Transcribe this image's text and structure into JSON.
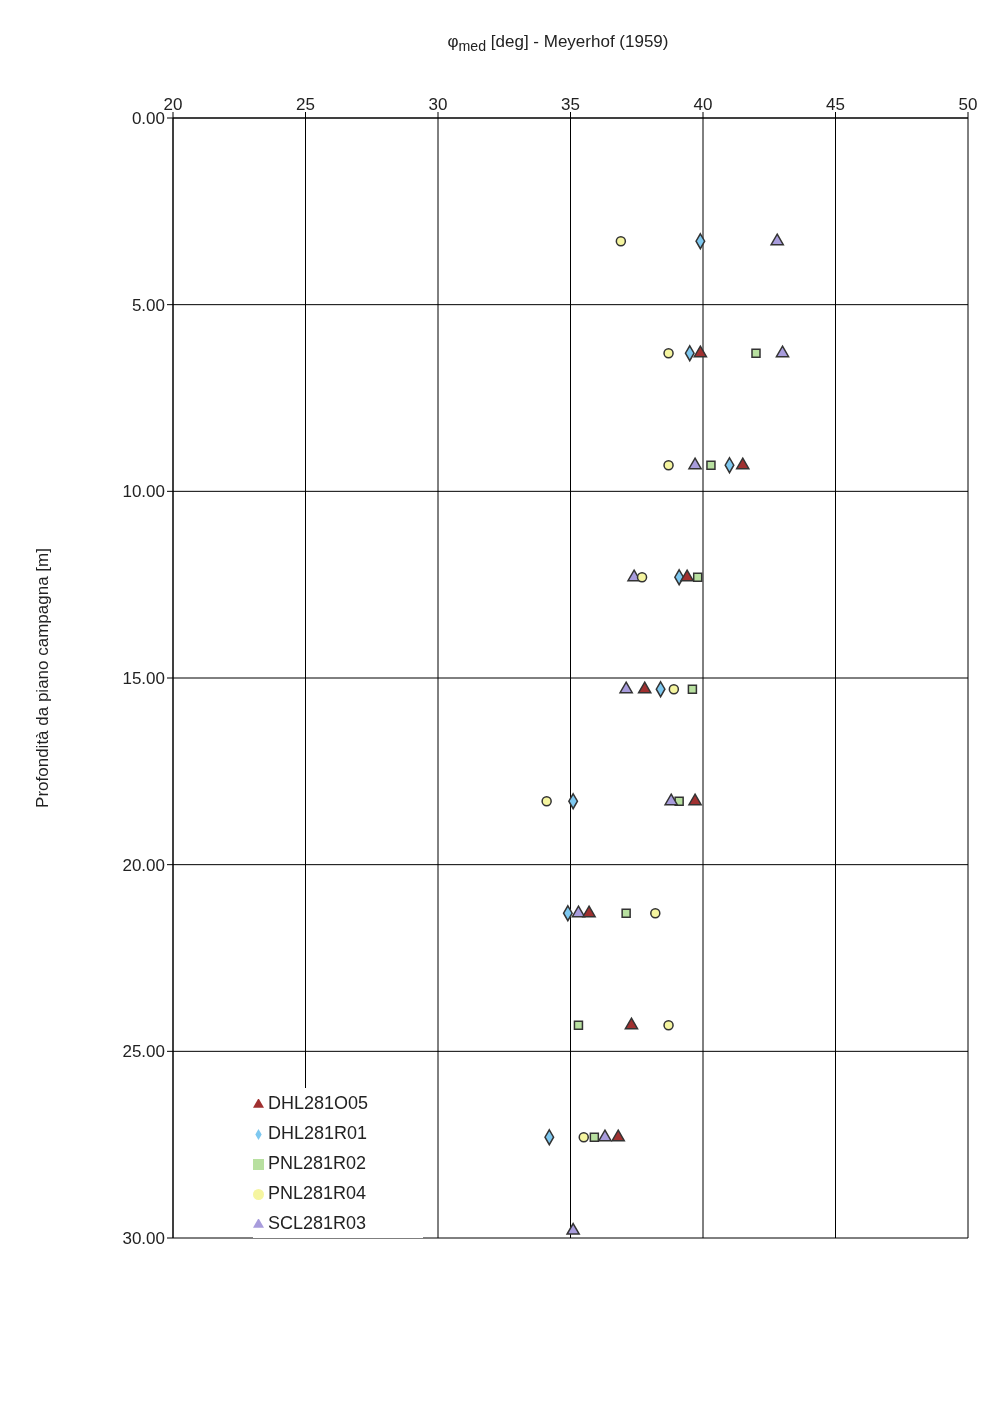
{
  "chart_data": {
    "type": "scatter",
    "xlabel": "φ$_{med}$ [deg] - Meyerhof (1959)",
    "ylabel": "Profondità da piano campagna [m]",
    "xlim": [
      20,
      50
    ],
    "xticks": [
      20,
      25,
      30,
      35,
      40,
      45,
      50
    ],
    "ylim": [
      30,
      0
    ],
    "yticks": [
      {
        "value": 0,
        "label": "0.00"
      },
      {
        "value": 5,
        "label": "5.00"
      },
      {
        "value": 10,
        "label": "10.00"
      },
      {
        "value": 15,
        "label": "15.00"
      },
      {
        "value": 20,
        "label": "20.00"
      },
      {
        "value": 25,
        "label": "25.00"
      },
      {
        "value": 30,
        "label": "30.00"
      }
    ],
    "grid": true,
    "legend": "bottom left",
    "series": [
      {
        "name": "DHL281R01",
        "color": "#7ec8f0",
        "marker": "diamond",
        "x": [
          39.9,
          39.5,
          41.0,
          39.1,
          38.4,
          35.1,
          34.9,
          34.2
        ],
        "values": [
          3.3,
          6.3,
          9.3,
          12.3,
          15.3,
          18.3,
          21.3,
          27.3
        ]
      },
      {
        "name": "PNL281R02",
        "color": "#b8e0a0",
        "marker": "square",
        "x": [
          42.0,
          40.3,
          39.8,
          39.6,
          39.1,
          37.1,
          35.3,
          35.9
        ],
        "values": [
          6.3,
          9.3,
          12.3,
          15.3,
          18.3,
          21.3,
          24.3,
          27.3
        ]
      },
      {
        "name": "SCL281R03",
        "color": "#a89cdc",
        "marker": "triangle",
        "x": [
          42.8,
          43.0,
          39.7,
          37.4,
          37.1,
          38.8,
          35.3,
          36.3,
          35.1
        ],
        "values": [
          3.3,
          6.3,
          9.3,
          12.3,
          15.3,
          18.3,
          21.3,
          27.3,
          29.8
        ]
      },
      {
        "name": "PNL281R04",
        "color": "#f5f5a0",
        "marker": "circle",
        "x": [
          36.9,
          38.7,
          38.7,
          37.7,
          38.9,
          34.1,
          38.2,
          38.7,
          35.5
        ],
        "values": [
          3.3,
          6.3,
          9.3,
          12.3,
          15.3,
          18.3,
          21.3,
          24.3,
          27.3
        ]
      },
      {
        "name": "DHL281O05",
        "color": "#a03030",
        "marker": "triangle",
        "x": [
          39.9,
          41.5,
          39.4,
          37.8,
          39.7,
          35.7,
          37.3,
          36.8
        ],
        "values": [
          6.3,
          9.3,
          12.3,
          15.3,
          18.3,
          21.3,
          24.3,
          27.3
        ]
      }
    ]
  }
}
